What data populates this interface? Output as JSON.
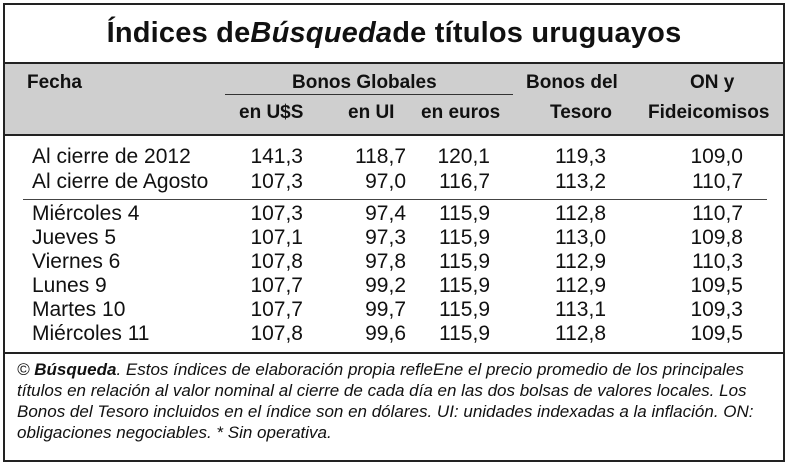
{
  "title": {
    "prefix": "Índices de ",
    "emph": "Búsqueda",
    "suffix": " de títulos uruguayos"
  },
  "header": {
    "fecha": "Fecha",
    "bonos_globales": "Bonos Globales",
    "bonos_del": "Bonos del",
    "tesoro": "Tesoro",
    "on_y": "ON y",
    "fideicomisos": "Fideicomisos",
    "sub": [
      "en U$S",
      "en UI",
      "en euros"
    ]
  },
  "rows_summary": [
    {
      "fecha": "Al cierre de 2012",
      "usd": "141,3",
      "ui": "118,7",
      "eur": "120,1",
      "tesoro": "119,3",
      "on": "109,0"
    },
    {
      "fecha": "Al cierre de Agosto",
      "usd": "107,3",
      "ui": "97,0",
      "eur": "116,7",
      "tesoro": "113,2",
      "on": "110,7"
    }
  ],
  "rows_daily": [
    {
      "fecha": "Miércoles 4",
      "usd": "107,3",
      "ui": "97,4",
      "eur": "115,9",
      "tesoro": "112,8",
      "on": "110,7"
    },
    {
      "fecha": "Jueves 5",
      "usd": "107,1",
      "ui": "97,3",
      "eur": "115,9",
      "tesoro": "113,0",
      "on": "109,8"
    },
    {
      "fecha": "Viernes 6",
      "usd": "107,8",
      "ui": "97,8",
      "eur": "115,9",
      "tesoro": "112,9",
      "on": "110,3"
    },
    {
      "fecha": "Lunes 9",
      "usd": "107,7",
      "ui": "99,2",
      "eur": "115,9",
      "tesoro": "112,9",
      "on": "109,5"
    },
    {
      "fecha": "Martes 10",
      "usd": "107,7",
      "ui": "99,7",
      "eur": "115,9",
      "tesoro": "113,1",
      "on": "109,3"
    },
    {
      "fecha": "Miércoles 11",
      "usd": "107,8",
      "ui": "99,6",
      "eur": "115,9",
      "tesoro": "112,8",
      "on": "109,5"
    }
  ],
  "footer": {
    "source_prefix": "© ",
    "source_name": "Búsqueda",
    "text": ". Estos índices de elaboración propia refleEne el precio promedio de los principales títulos en relación al valor nominal al cierre de cada día en las dos bolsas de valores locales. Los Bonos del Tesoro incluidos en el índice son en dólares. UI: unidades indexadas a la inflación. ON: obligaciones negociables. * Sin operativa."
  }
}
